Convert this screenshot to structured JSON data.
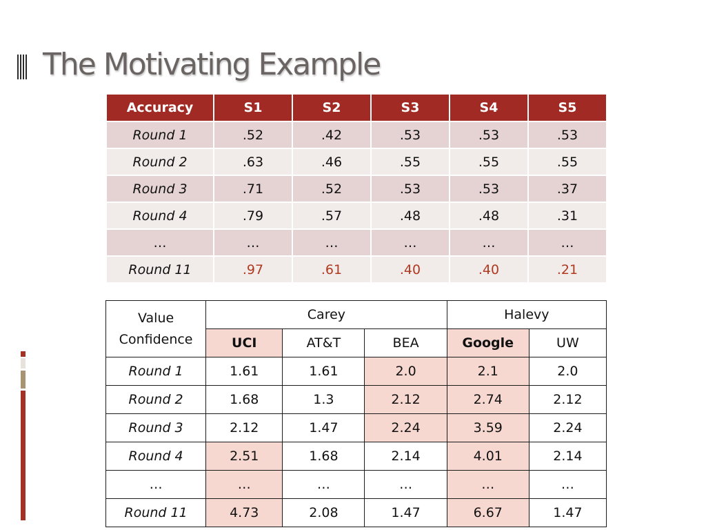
{
  "slide": {
    "title": "The Motivating Example"
  },
  "accuracy_table": {
    "header": [
      "Accuracy",
      "S1",
      "S2",
      "S3",
      "S4",
      "S5"
    ],
    "rows": [
      {
        "label": "Round 1",
        "values": [
          ".52",
          ".42",
          ".53",
          ".53",
          ".53"
        ]
      },
      {
        "label": "Round 2",
        "values": [
          ".63",
          ".46",
          ".55",
          ".55",
          ".55"
        ]
      },
      {
        "label": "Round 3",
        "values": [
          ".71",
          ".52",
          ".53",
          ".53",
          ".37"
        ]
      },
      {
        "label": "Round 4",
        "values": [
          ".79",
          ".57",
          ".48",
          ".48",
          ".31"
        ]
      },
      {
        "label": "…",
        "values": [
          "…",
          "…",
          "…",
          "…",
          "…"
        ]
      },
      {
        "label": "Round 11",
        "values": [
          ".97",
          ".61",
          ".40",
          ".40",
          ".21"
        ]
      }
    ],
    "highlight_color": "#b03a1f",
    "header_color": "#a12b24"
  },
  "confidence_table": {
    "corner_line1": "Value",
    "corner_line2": "Confidence",
    "groups": [
      "Carey",
      "Halevy"
    ],
    "columns": [
      "UCI",
      "AT&T",
      "BEA",
      "Google",
      "UW"
    ],
    "rows": [
      {
        "label": "Round 1",
        "values": [
          "1.61",
          "1.61",
          "2.0",
          "2.1",
          "2.0"
        ]
      },
      {
        "label": "Round 2",
        "values": [
          "1.68",
          "1.3",
          "2.12",
          "2.74",
          "2.12"
        ]
      },
      {
        "label": "Round 3",
        "values": [
          "2.12",
          "1.47",
          "2.24",
          "3.59",
          "2.24"
        ]
      },
      {
        "label": "Round 4",
        "values": [
          "2.51",
          "1.68",
          "2.14",
          "4.01",
          "2.14"
        ]
      },
      {
        "label": "…",
        "values": [
          "…",
          "…",
          "…",
          "…",
          "…"
        ]
      },
      {
        "label": "Round 11",
        "values": [
          "4.73",
          "2.08",
          "1.47",
          "6.67",
          "1.47"
        ]
      }
    ],
    "highlight_color": "#f6d8d0"
  }
}
